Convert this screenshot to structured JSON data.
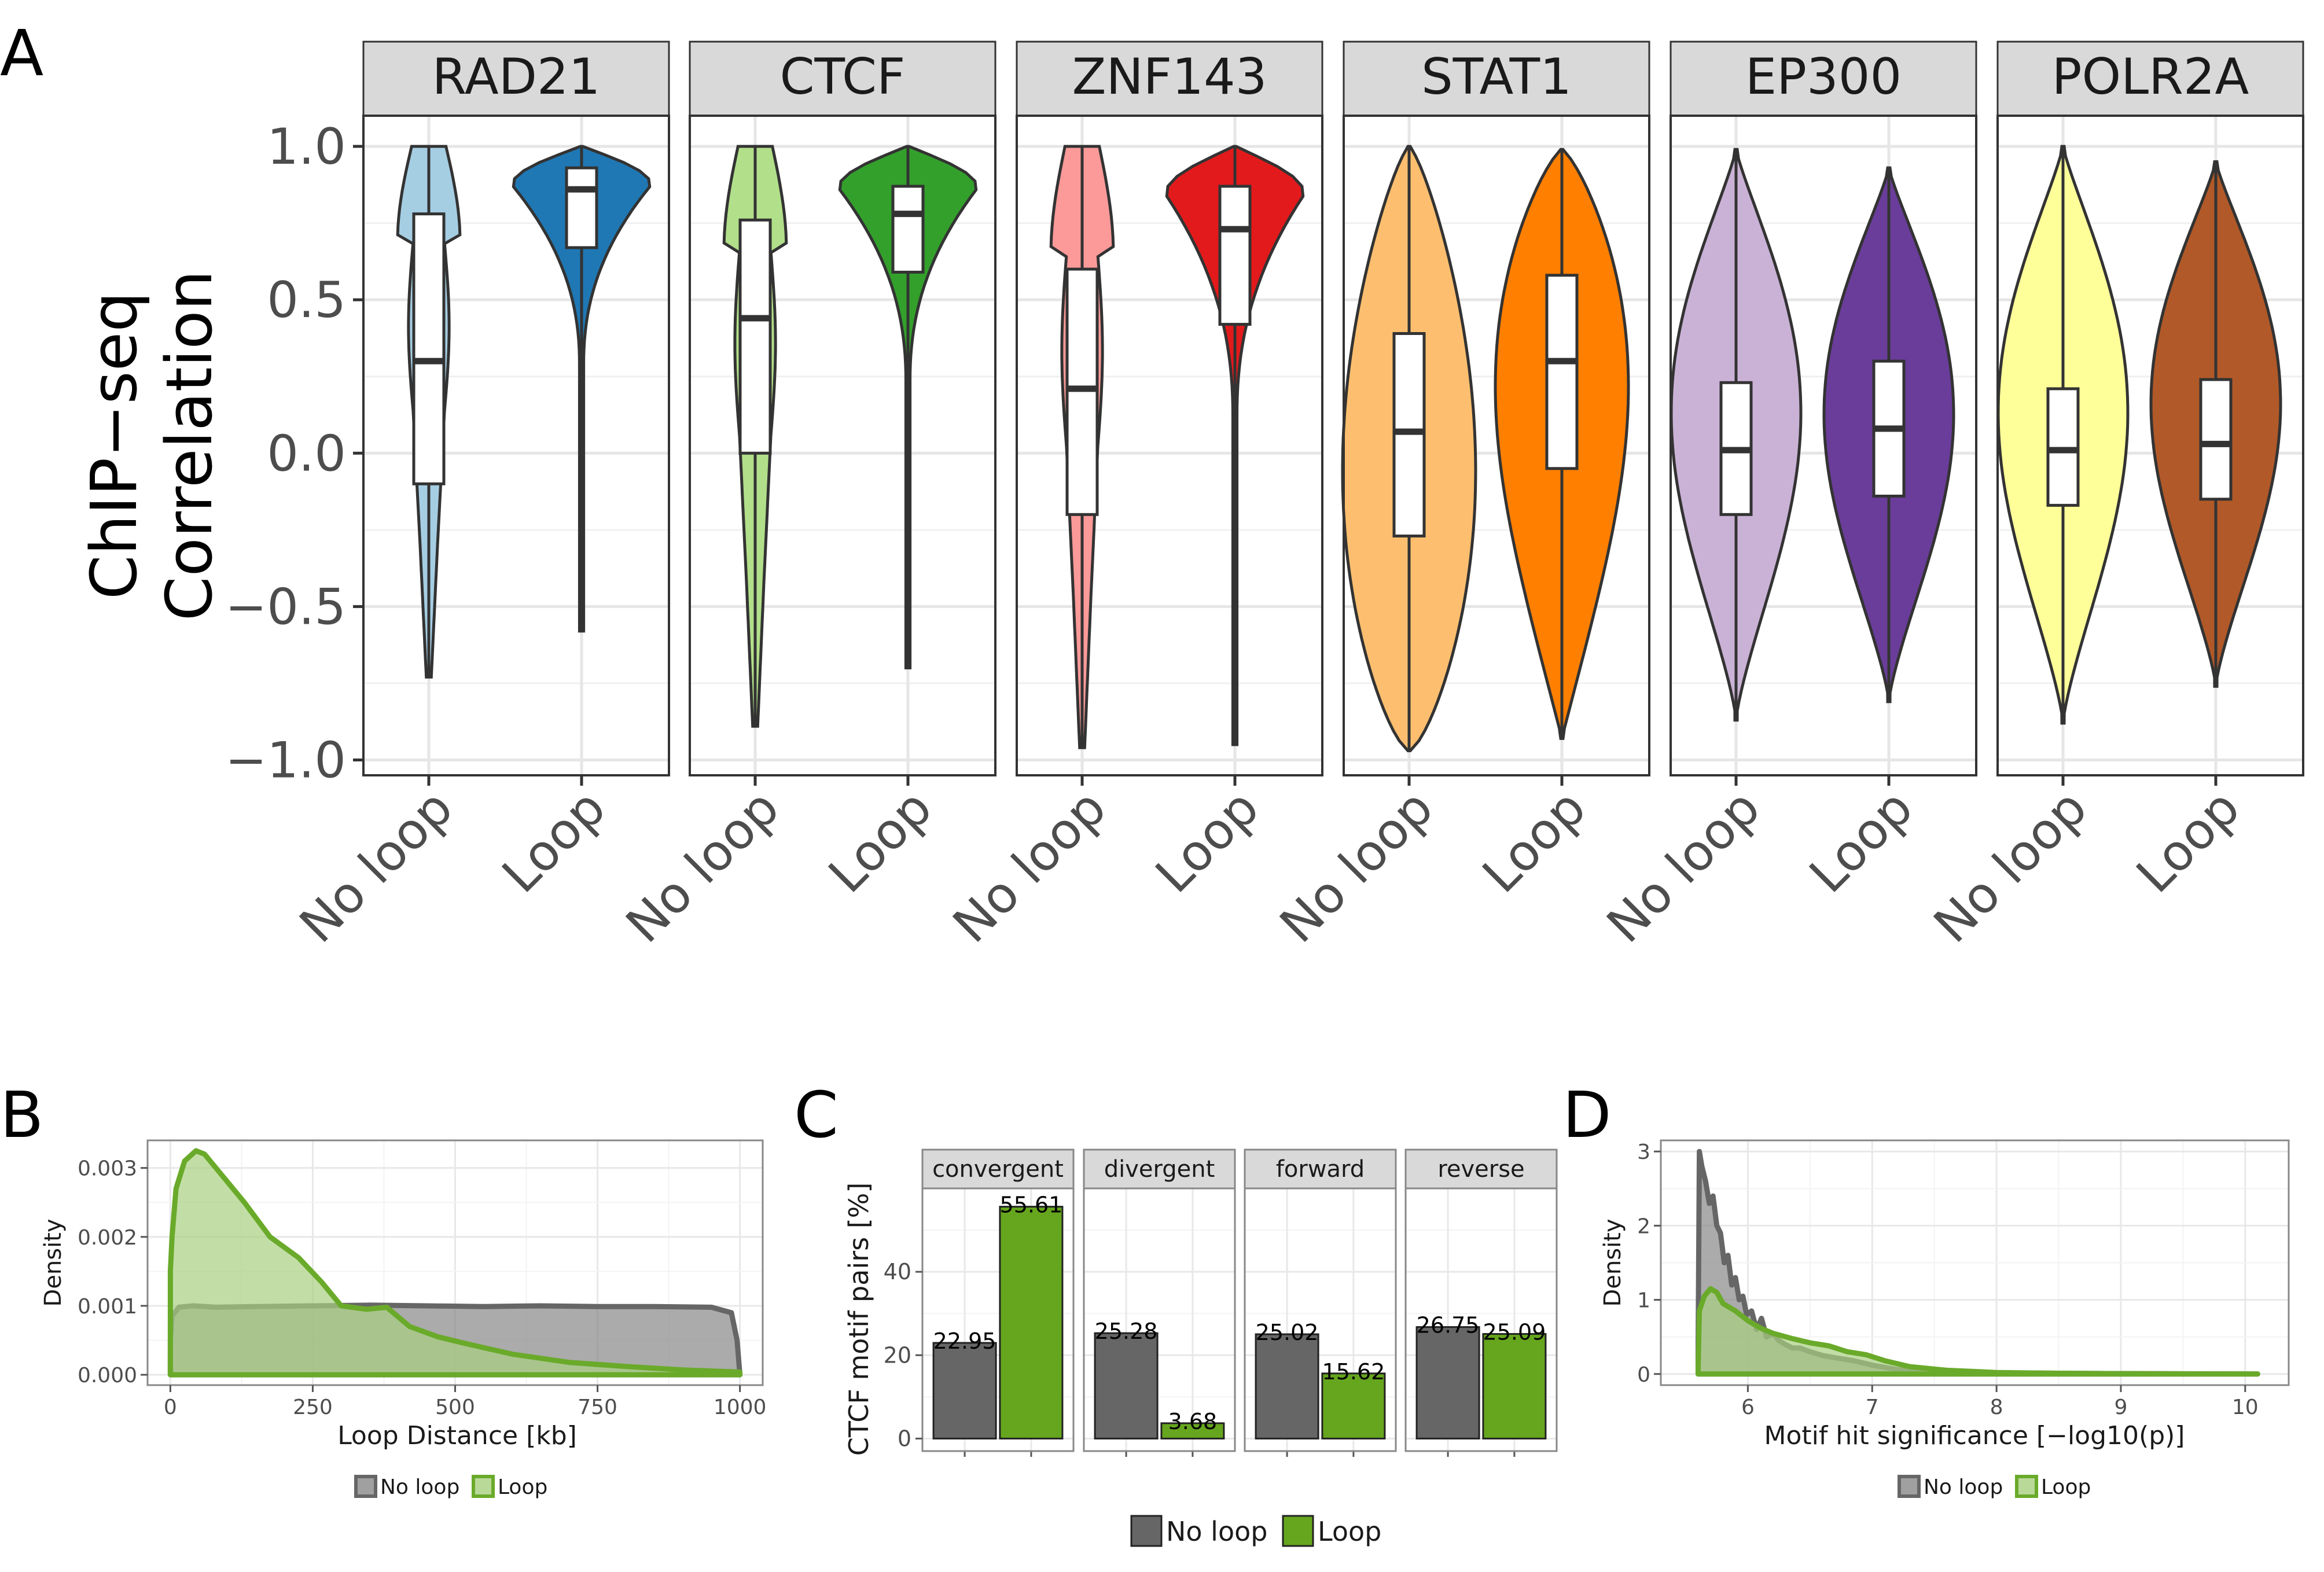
{
  "panel_letters": {
    "a": "A",
    "b": "B",
    "c": "C",
    "d": "D"
  },
  "chart_data": [
    {
      "panel": "A",
      "type": "violin",
      "ylabel_line1": "ChIP−seq",
      "ylabel_line2": "Correlation",
      "ylim": [
        -1.05,
        1.1
      ],
      "yticks": [
        1.0,
        0.5,
        0.0,
        -0.5,
        -1.0
      ],
      "ytick_labels": [
        "1.0",
        "0.5",
        "0.0",
        "−0.5",
        "−1.0"
      ],
      "categories": [
        "No loop",
        "Loop"
      ],
      "grid": true,
      "facets": [
        {
          "name": "RAD21",
          "colors": [
            "#a6cee3",
            "#1f78b4"
          ],
          "groups": [
            {
              "group": "No loop",
              "min": -0.73,
              "max": 1.0,
              "q1": -0.1,
              "median": 0.3,
              "q3": 0.78,
              "shape": "wide_top_thin"
            },
            {
              "group": "Loop",
              "min": -0.58,
              "max": 1.0,
              "q1": 0.67,
              "median": 0.86,
              "q3": 0.93,
              "shape": "top_heavy"
            }
          ]
        },
        {
          "name": "CTCF",
          "colors": [
            "#b2df8a",
            "#33a02c"
          ],
          "groups": [
            {
              "group": "No loop",
              "min": -0.89,
              "max": 1.0,
              "q1": 0.0,
              "median": 0.44,
              "q3": 0.76,
              "shape": "wide_top_thin"
            },
            {
              "group": "Loop",
              "min": -0.7,
              "max": 1.0,
              "q1": 0.59,
              "median": 0.78,
              "q3": 0.87,
              "shape": "top_heavy"
            }
          ]
        },
        {
          "name": "ZNF143",
          "colors": [
            "#fb9a99",
            "#e31a1c"
          ],
          "groups": [
            {
              "group": "No loop",
              "min": -0.96,
              "max": 1.0,
              "q1": -0.2,
              "median": 0.21,
              "q3": 0.6,
              "shape": "wide_top_thin"
            },
            {
              "group": "Loop",
              "min": -0.95,
              "max": 1.0,
              "q1": 0.42,
              "median": 0.73,
              "q3": 0.87,
              "shape": "top_heavy"
            }
          ]
        },
        {
          "name": "STAT1",
          "colors": [
            "#fdbf6f",
            "#ff7f00"
          ],
          "groups": [
            {
              "group": "No loop",
              "min": -0.97,
              "max": 1.0,
              "q1": -0.27,
              "median": 0.07,
              "q3": 0.39,
              "shape": "broad"
            },
            {
              "group": "Loop",
              "min": -0.93,
              "max": 0.99,
              "q1": -0.05,
              "median": 0.3,
              "q3": 0.58,
              "shape": "broad_top"
            }
          ]
        },
        {
          "name": "EP300",
          "colors": [
            "#cab2d6",
            "#6a3d9a"
          ],
          "groups": [
            {
              "group": "No loop",
              "min": -0.87,
              "max": 0.99,
              "q1": -0.2,
              "median": 0.01,
              "q3": 0.23,
              "shape": "center"
            },
            {
              "group": "Loop",
              "min": -0.81,
              "max": 0.93,
              "q1": -0.14,
              "median": 0.08,
              "q3": 0.3,
              "shape": "center"
            }
          ]
        },
        {
          "name": "POLR2A",
          "colors": [
            "#ffff99",
            "#b15928"
          ],
          "groups": [
            {
              "group": "No loop",
              "min": -0.88,
              "max": 1.0,
              "q1": -0.17,
              "median": 0.01,
              "q3": 0.21,
              "shape": "center"
            },
            {
              "group": "Loop",
              "min": -0.76,
              "max": 0.95,
              "q1": -0.15,
              "median": 0.03,
              "q3": 0.24,
              "shape": "center"
            }
          ]
        }
      ]
    },
    {
      "panel": "B",
      "type": "area",
      "xlabel": "Loop Distance [kb]",
      "ylabel": "Density",
      "xlim": [
        -40,
        1040
      ],
      "ylim": [
        -0.00015,
        0.0034
      ],
      "xticks": [
        0,
        250,
        500,
        750,
        1000
      ],
      "xtick_labels": [
        "0",
        "250",
        "500",
        "750",
        "1000"
      ],
      "yticks": [
        0.0,
        0.001,
        0.002,
        0.003
      ],
      "ytick_labels": [
        "0.000",
        "0.001",
        "0.002",
        "0.003"
      ],
      "grid": true,
      "legend_position": "bottom",
      "series": [
        {
          "name": "No loop",
          "fill": "#888888",
          "line": "#666666",
          "x": [
            0,
            3,
            15,
            40,
            80,
            150,
            250,
            350,
            450,
            550,
            650,
            750,
            850,
            950,
            985,
            995,
            1000
          ],
          "y": [
            0.0005,
            0.00085,
            0.00098,
            0.001,
            0.00098,
            0.00099,
            0.001,
            0.00101,
            0.001,
            0.00099,
            0.001,
            0.00099,
            0.00099,
            0.00098,
            0.0009,
            0.0005,
            0.0
          ]
        },
        {
          "name": "Loop",
          "fill": "#a8d080",
          "line": "#6aaa2a",
          "x": [
            0,
            3,
            10,
            25,
            45,
            60,
            90,
            130,
            175,
            225,
            265,
            300,
            345,
            380,
            420,
            470,
            520,
            600,
            700,
            800,
            900,
            1000
          ],
          "y": [
            0.0015,
            0.002,
            0.0027,
            0.0031,
            0.00325,
            0.0032,
            0.0029,
            0.0025,
            0.002,
            0.0017,
            0.00135,
            0.001,
            0.00095,
            0.00098,
            0.0007,
            0.00055,
            0.00045,
            0.0003,
            0.00018,
            0.00012,
            7e-05,
            4e-05
          ]
        }
      ]
    },
    {
      "panel": "C",
      "type": "bar",
      "ylabel": "CTCF motif pairs [%]",
      "ylim": [
        -3,
        60
      ],
      "yticks": [
        0,
        20,
        40
      ],
      "ytick_labels": [
        "0",
        "20",
        "40"
      ],
      "grid": true,
      "legend_position": "bottom",
      "series_names": [
        "No loop",
        "Loop"
      ],
      "colors": [
        "#666666",
        "#66a61e"
      ],
      "facets": [
        {
          "name": "convergent",
          "values": [
            22.95,
            55.61
          ],
          "labels": [
            "22.95",
            "55.61"
          ]
        },
        {
          "name": "divergent",
          "values": [
            25.28,
            3.68
          ],
          "labels": [
            "25.28",
            "3.68"
          ]
        },
        {
          "name": "forward",
          "values": [
            25.02,
            15.62
          ],
          "labels": [
            "25.02",
            "15.62"
          ]
        },
        {
          "name": "reverse",
          "values": [
            26.75,
            25.09
          ],
          "labels": [
            "26.75",
            "25.09"
          ]
        }
      ]
    },
    {
      "panel": "D",
      "type": "area",
      "xlabel": "Motif hit significance [−log10(p)]",
      "ylabel": "Density",
      "xlim": [
        5.3,
        10.35
      ],
      "ylim": [
        -0.15,
        3.15
      ],
      "xticks": [
        6,
        7,
        8,
        9,
        10
      ],
      "xtick_labels": [
        "6",
        "7",
        "8",
        "9",
        "10"
      ],
      "yticks": [
        0,
        1,
        2,
        3
      ],
      "ytick_labels": [
        "0",
        "1",
        "2",
        "3"
      ],
      "grid": true,
      "legend_position": "bottom",
      "series": [
        {
          "name": "No loop",
          "fill": "#888888",
          "line": "#666666",
          "x": [
            5.6,
            5.61,
            5.63,
            5.66,
            5.69,
            5.72,
            5.75,
            5.78,
            5.81,
            5.84,
            5.87,
            5.9,
            5.93,
            5.96,
            5.99,
            6.03,
            6.07,
            6.11,
            6.15,
            6.2,
            6.25,
            6.3,
            6.36,
            6.42,
            6.5,
            6.6,
            6.7,
            6.85,
            7.0,
            7.2,
            7.5,
            8.0,
            9.0,
            10.1
          ],
          "y": [
            0.4,
            3.0,
            2.8,
            2.6,
            2.3,
            2.4,
            2.0,
            1.9,
            1.5,
            1.6,
            1.2,
            1.3,
            1.0,
            1.05,
            0.8,
            0.85,
            0.6,
            0.75,
            0.5,
            0.55,
            0.45,
            0.4,
            0.35,
            0.35,
            0.3,
            0.25,
            0.22,
            0.18,
            0.12,
            0.06,
            0.03,
            0.015,
            0.005,
            0.0
          ]
        },
        {
          "name": "Loop",
          "fill": "#a8d080",
          "line": "#6aaa2a",
          "x": [
            5.6,
            5.61,
            5.65,
            5.7,
            5.75,
            5.8,
            5.9,
            6.0,
            6.1,
            6.2,
            6.35,
            6.5,
            6.65,
            6.8,
            6.95,
            7.1,
            7.3,
            7.6,
            8.0,
            8.5,
            9.0,
            9.5,
            10.1
          ],
          "y": [
            0.1,
            0.85,
            1.05,
            1.15,
            1.1,
            0.95,
            0.85,
            0.72,
            0.62,
            0.55,
            0.48,
            0.42,
            0.38,
            0.3,
            0.26,
            0.18,
            0.1,
            0.05,
            0.02,
            0.01,
            0.005,
            0.002,
            0.0
          ]
        }
      ]
    }
  ]
}
